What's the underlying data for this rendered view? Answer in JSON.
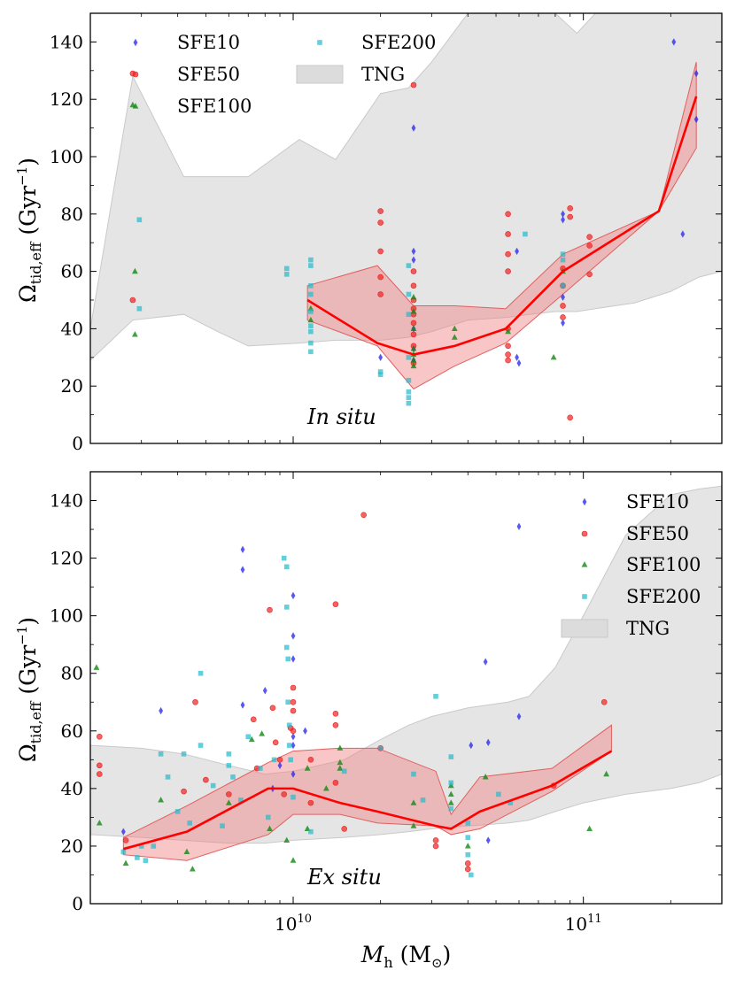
{
  "chart_data": [
    {
      "type": "scatter",
      "panel": "top",
      "annotation": "In situ",
      "ylabel": "Ω_tid,eff (Gyr^-1)",
      "ylabel_main": "Ω",
      "ylabel_sub": "tid,eff",
      "ylabel_unit": "(Gyr",
      "ylabel_exp": "−1",
      "ylabel_close": ")",
      "xlim": [
        2000000000.0,
        300000000000.0
      ],
      "ylim": [
        0,
        150
      ],
      "yticks": [
        0,
        20,
        40,
        60,
        80,
        100,
        120,
        140
      ],
      "xscale": "log",
      "legend": {
        "placement": "top-left",
        "columns": 2,
        "entries": [
          "SFE10",
          "SFE50",
          "SFE100",
          "SFE200",
          "TNG"
        ]
      },
      "tng_band": {
        "x": [
          2000000000.0,
          2800000000.0,
          4200000000.0,
          5500000000.0,
          7000000000.0,
          10500000000.0,
          14000000000.0,
          20000000000.0,
          25000000000.0,
          30000000000.0,
          40000000000.0,
          55000000000.0,
          65000000000.0,
          80000000000.0,
          95000000000.0,
          110000000000.0,
          150000000000.0,
          200000000000.0,
          250000000000.0,
          300000000000.0
        ],
        "upper": [
          40,
          128,
          93,
          93,
          93,
          106,
          99,
          122,
          124,
          133,
          150,
          150,
          150,
          150,
          143,
          150,
          150,
          150,
          150,
          150
        ],
        "lower": [
          29,
          43,
          45,
          39,
          34,
          35,
          36,
          36,
          37,
          39,
          43,
          44,
          45,
          46,
          46,
          47,
          49,
          53,
          58,
          60
        ]
      },
      "median_line": {
        "x": [
          11200000000.0,
          19500000000.0,
          26000000000.0,
          36000000000.0,
          54000000000.0,
          85000000000.0,
          182000000000.0,
          245000000000.0
        ],
        "y": [
          50,
          35,
          31,
          34,
          40,
          60,
          81,
          121
        ]
      },
      "median_band": {
        "x": [
          11200000000.0,
          19500000000.0,
          26000000000.0,
          36000000000.0,
          54000000000.0,
          85000000000.0,
          182000000000.0,
          245000000000.0
        ],
        "upper": [
          55,
          62,
          48,
          48,
          47,
          66,
          81,
          133
        ],
        "lower": [
          43,
          34,
          19,
          27,
          35,
          52,
          81,
          103
        ]
      },
      "series": [
        {
          "name": "SFE10",
          "marker": "diamond",
          "color": "#2222ee",
          "x": [
            20000000000.0,
            26000000000.0,
            26000000000.0,
            26000000000.0,
            26000000000.0,
            26000000000.0,
            26000000000.0,
            59000000000.0,
            59000000000.0,
            60000000000.0,
            85000000000.0,
            85000000000.0,
            85000000000.0,
            85000000000.0,
            205000000000.0,
            220000000000.0,
            245000000000.0,
            245000000000.0
          ],
          "y": [
            30,
            110,
            67,
            64,
            40,
            33,
            29,
            67,
            30,
            28,
            80,
            78,
            51,
            42,
            140,
            73,
            113,
            129
          ]
        },
        {
          "name": "SFE50",
          "marker": "circle",
          "color": "#ee2222",
          "x": [
            2800000000.0,
            2800000000.0,
            20000000000.0,
            20000000000.0,
            20000000000.0,
            20000000000.0,
            20000000000.0,
            26000000000.0,
            26000000000.0,
            26000000000.0,
            26000000000.0,
            26000000000.0,
            26000000000.0,
            26000000000.0,
            26000000000.0,
            26000000000.0,
            26000000000.0,
            55000000000.0,
            55000000000.0,
            55000000000.0,
            55000000000.0,
            55000000000.0,
            55000000000.0,
            55000000000.0,
            55000000000.0,
            85000000000.0,
            85000000000.0,
            85000000000.0,
            85000000000.0,
            90000000000.0,
            90000000000.0,
            90000000000.0,
            105000000000.0,
            105000000000.0,
            105000000000.0
          ],
          "y": [
            129,
            50,
            81,
            77,
            67,
            58,
            52,
            125,
            60,
            55,
            50,
            47,
            45,
            42,
            38,
            34,
            28,
            80,
            73,
            66,
            60,
            40,
            34,
            31,
            29,
            61,
            55,
            48,
            44,
            82,
            79,
            9,
            72,
            69,
            59
          ]
        },
        {
          "name": "SFE100",
          "marker": "triangle",
          "color": "#118811",
          "x": [
            2800000000.0,
            2850000000.0,
            2850000000.0,
            11500000000.0,
            11500000000.0,
            26000000000.0,
            26000000000.0,
            26000000000.0,
            26000000000.0,
            26000000000.0,
            26000000000.0,
            26000000000.0,
            36000000000.0,
            36000000000.0,
            55000000000.0,
            79000000000.0,
            85000000000.0
          ],
          "y": [
            118,
            60,
            38,
            47,
            43,
            51,
            46,
            40,
            33,
            31,
            29,
            27,
            40,
            37,
            39,
            30,
            60
          ]
        },
        {
          "name": "SFE200",
          "marker": "square",
          "color": "#22bbcc",
          "x": [
            2950000000.0,
            2950000000.0,
            9500000000.0,
            9500000000.0,
            11500000000.0,
            11500000000.0,
            11500000000.0,
            11500000000.0,
            11500000000.0,
            11500000000.0,
            11500000000.0,
            11500000000.0,
            11500000000.0,
            20000000000.0,
            20000000000.0,
            25000000000.0,
            25000000000.0,
            25000000000.0,
            25000000000.0,
            25000000000.0,
            25000000000.0,
            25000000000.0,
            25000000000.0,
            63000000000.0,
            85000000000.0,
            85000000000.0,
            85000000000.0
          ],
          "y": [
            78,
            47,
            61,
            59,
            64,
            62,
            55,
            52,
            46,
            41,
            39,
            35,
            32,
            25,
            24,
            62,
            52,
            45,
            30,
            22,
            18,
            16,
            14,
            73,
            66,
            64,
            55
          ]
        }
      ]
    },
    {
      "type": "scatter",
      "panel": "bottom",
      "annotation": "Ex situ",
      "xlabel": "M_h (M_⊙)",
      "xlabel_main": "M",
      "xlabel_sub": "h",
      "xlabel_unit": "(M",
      "xlabel_unit_sub": "⊙",
      "xlabel_close": ")",
      "ylabel": "Ω_tid,eff (Gyr^-1)",
      "ylabel_main": "Ω",
      "ylabel_sub": "tid,eff",
      "ylabel_unit": "(Gyr",
      "ylabel_exp": "−1",
      "ylabel_close": ")",
      "xlim": [
        2000000000.0,
        300000000000.0
      ],
      "ylim": [
        0,
        150
      ],
      "yticks": [
        0,
        20,
        40,
        60,
        80,
        100,
        120,
        140
      ],
      "xticks_major": [
        {
          "value": 10000000000.0,
          "base": "10",
          "exp": "10"
        },
        {
          "value": 100000000000.0,
          "base": "10",
          "exp": "11"
        }
      ],
      "xscale": "log",
      "legend": {
        "placement": "top-right",
        "columns": 1,
        "entries": [
          "SFE10",
          "SFE50",
          "SFE100",
          "SFE200",
          "TNG"
        ]
      },
      "tng_band": {
        "x": [
          2000000000.0,
          3000000000.0,
          4200000000.0,
          6000000000.0,
          8000000000.0,
          10000000000.0,
          15000000000.0,
          20000000000.0,
          25000000000.0,
          30000000000.0,
          40000000000.0,
          55000000000.0,
          65000000000.0,
          80000000000.0,
          100000000000.0,
          140000000000.0,
          200000000000.0,
          250000000000.0,
          300000000000.0
        ],
        "upper": [
          55,
          54,
          52,
          48,
          45,
          46,
          50,
          57,
          62,
          65,
          68,
          70,
          72,
          82,
          100,
          128,
          142,
          144,
          145
        ],
        "lower": [
          24,
          23,
          22,
          21,
          21,
          22,
          23,
          24,
          25,
          26,
          27,
          28,
          29,
          32,
          35,
          38,
          40,
          42,
          45
        ]
      },
      "median_line": {
        "x": [
          2600000000.0,
          4300000000.0,
          8200000000.0,
          10000000000.0,
          14500000000.0,
          19500000000.0,
          31000000000.0,
          35000000000.0,
          44000000000.0,
          78000000000.0,
          125000000000.0
        ],
        "y": [
          19,
          25,
          40,
          40,
          35,
          32,
          27,
          26,
          32,
          41,
          53
        ]
      },
      "median_band": {
        "x": [
          2600000000.0,
          4300000000.0,
          8200000000.0,
          10000000000.0,
          14500000000.0,
          19500000000.0,
          31000000000.0,
          35000000000.0,
          44000000000.0,
          78000000000.0,
          125000000000.0
        ],
        "upper": [
          23,
          34,
          49,
          53,
          54,
          54,
          46,
          31,
          44,
          47,
          62
        ],
        "lower": [
          17,
          15,
          24,
          31,
          31,
          28,
          27,
          24,
          26,
          39,
          53
        ]
      },
      "series": [
        {
          "name": "SFE10",
          "marker": "diamond",
          "color": "#2222ee",
          "x": [
            2600000000.0,
            3500000000.0,
            6700000000.0,
            6700000000.0,
            6700000000.0,
            8000000000.0,
            8500000000.0,
            9000000000.0,
            10000000000.0,
            10000000000.0,
            10000000000.0,
            10000000000.0,
            10000000000.0,
            10000000000.0,
            11000000000.0,
            41000000000.0,
            46000000000.0,
            47000000000.0,
            47000000000.0,
            60000000000.0,
            60000000000.0
          ],
          "y": [
            25,
            67,
            123,
            116,
            69,
            74,
            40,
            48,
            107,
            93,
            85,
            58,
            55,
            45,
            60,
            55,
            84,
            56,
            22,
            131,
            65
          ]
        },
        {
          "name": "SFE50",
          "marker": "circle",
          "color": "#ee2222",
          "x": [
            2150000000.0,
            2150000000.0,
            2150000000.0,
            2650000000.0,
            4200000000.0,
            4600000000.0,
            5000000000.0,
            6000000000.0,
            7300000000.0,
            7500000000.0,
            8300000000.0,
            8500000000.0,
            8700000000.0,
            9000000000.0,
            9300000000.0,
            9800000000.0,
            10000000000.0,
            10000000000.0,
            10000000000.0,
            10000000000.0,
            11500000000.0,
            11500000000.0,
            14000000000.0,
            14000000000.0,
            14000000000.0,
            14000000000.0,
            15000000000.0,
            17500000000.0,
            20000000000.0,
            31000000000.0,
            31000000000.0,
            40000000000.0,
            40000000000.0,
            79000000000.0,
            118000000000.0
          ],
          "y": [
            58,
            48,
            45,
            22,
            39,
            70,
            43,
            38,
            64,
            47,
            102,
            68,
            56,
            50,
            38,
            61,
            75,
            70,
            67,
            60,
            50,
            35,
            104,
            66,
            62,
            42,
            26,
            135,
            54,
            22,
            20,
            14,
            12,
            41,
            70
          ]
        },
        {
          "name": "SFE100",
          "marker": "triangle",
          "color": "#118811",
          "x": [
            2100000000.0,
            2150000000.0,
            2650000000.0,
            3500000000.0,
            4300000000.0,
            4500000000.0,
            6000000000.0,
            7200000000.0,
            7800000000.0,
            8300000000.0,
            9500000000.0,
            10000000000.0,
            11200000000.0,
            11200000000.0,
            13000000000.0,
            14500000000.0,
            14500000000.0,
            14500000000.0,
            26000000000.0,
            26000000000.0,
            35000000000.0,
            35000000000.0,
            35000000000.0,
            40000000000.0,
            46000000000.0,
            105000000000.0,
            120000000000.0
          ],
          "y": [
            82,
            28,
            14,
            36,
            18,
            12,
            35,
            57,
            59,
            26,
            22,
            15,
            47,
            26,
            40,
            54,
            49,
            47,
            35,
            27,
            41,
            38,
            35,
            20,
            44,
            26,
            45
          ]
        },
        {
          "name": "SFE200",
          "marker": "square",
          "color": "#22bbcc",
          "x": [
            2600000000.0,
            2900000000.0,
            3000000000.0,
            3100000000.0,
            3300000000.0,
            3500000000.0,
            3700000000.0,
            4000000000.0,
            4200000000.0,
            4400000000.0,
            4800000000.0,
            4800000000.0,
            5300000000.0,
            5700000000.0,
            6000000000.0,
            6000000000.0,
            6200000000.0,
            6600000000.0,
            7000000000.0,
            7700000000.0,
            8200000000.0,
            8600000000.0,
            9300000000.0,
            9500000000.0,
            9500000000.0,
            9500000000.0,
            9600000000.0,
            9600000000.0,
            9700000000.0,
            9700000000.0,
            9800000000.0,
            10000000000.0,
            11500000000.0,
            15000000000.0,
            20000000000.0,
            26000000000.0,
            28000000000.0,
            31000000000.0,
            35000000000.0,
            35000000000.0,
            35000000000.0,
            40000000000.0,
            40000000000.0,
            40000000000.0,
            41000000000.0,
            51000000000.0,
            56000000000.0
          ],
          "y": [
            18,
            16,
            20,
            15,
            20,
            52,
            44,
            32,
            52,
            28,
            80,
            55,
            41,
            27,
            52,
            48,
            44,
            36,
            58,
            47,
            30,
            50,
            120,
            117,
            103,
            89,
            85,
            70,
            62,
            55,
            50,
            37,
            25,
            46,
            54,
            45,
            36,
            72,
            51,
            42,
            33,
            28,
            23,
            17,
            10,
            38,
            35
          ]
        }
      ]
    }
  ]
}
